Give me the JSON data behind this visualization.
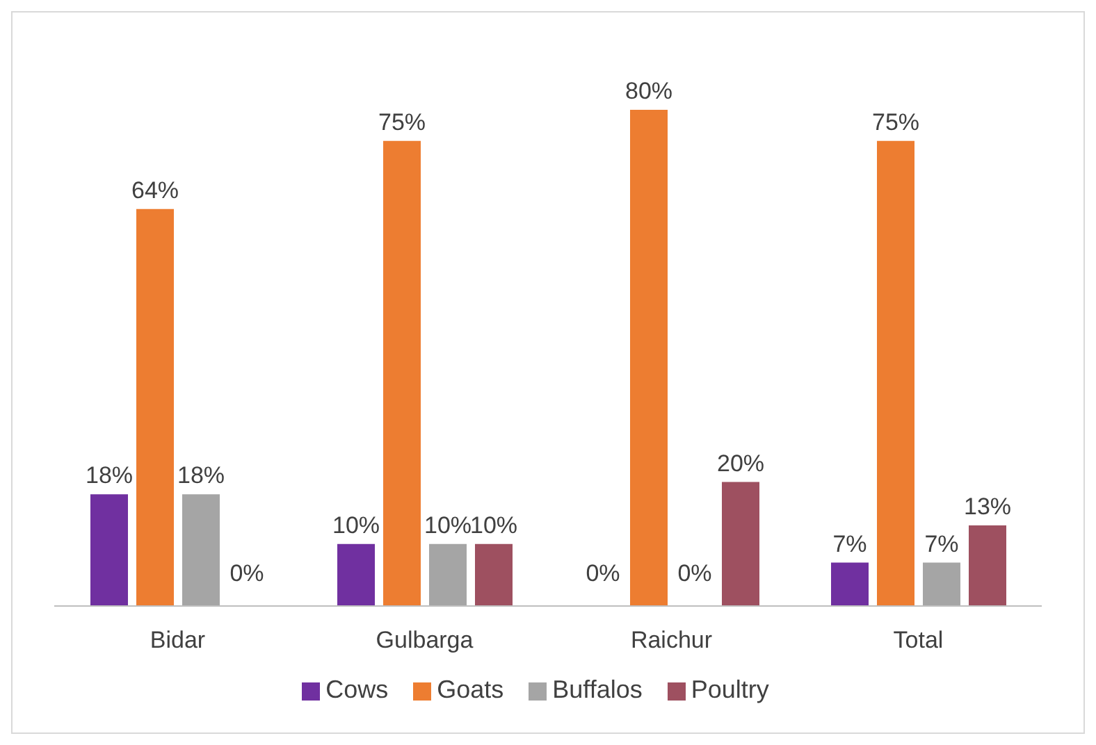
{
  "chart_data": {
    "type": "bar",
    "categories": [
      "Bidar",
      "Gulbarga",
      "Raichur",
      "Total"
    ],
    "series": [
      {
        "name": "Cows",
        "color": "#7030a0",
        "values": [
          18,
          10,
          0,
          7
        ],
        "value_labels": [
          "18%",
          "10%",
          "0%",
          "7%"
        ]
      },
      {
        "name": "Goats",
        "color": "#ed7d31",
        "values": [
          64,
          75,
          80,
          75
        ],
        "value_labels": [
          "64%",
          "75%",
          "80%",
          "75%"
        ]
      },
      {
        "name": "Buffalos",
        "color": "#a5a5a5",
        "values": [
          18,
          10,
          0,
          7
        ],
        "value_labels": [
          "18%",
          "10%",
          "0%",
          "7%"
        ]
      },
      {
        "name": "Poultry",
        "color": "#9e5060",
        "values": [
          0,
          10,
          20,
          13
        ],
        "value_labels": [
          "0%",
          "10%",
          "20%",
          "13%"
        ]
      }
    ],
    "legend": "bottom",
    "grid": false
  }
}
